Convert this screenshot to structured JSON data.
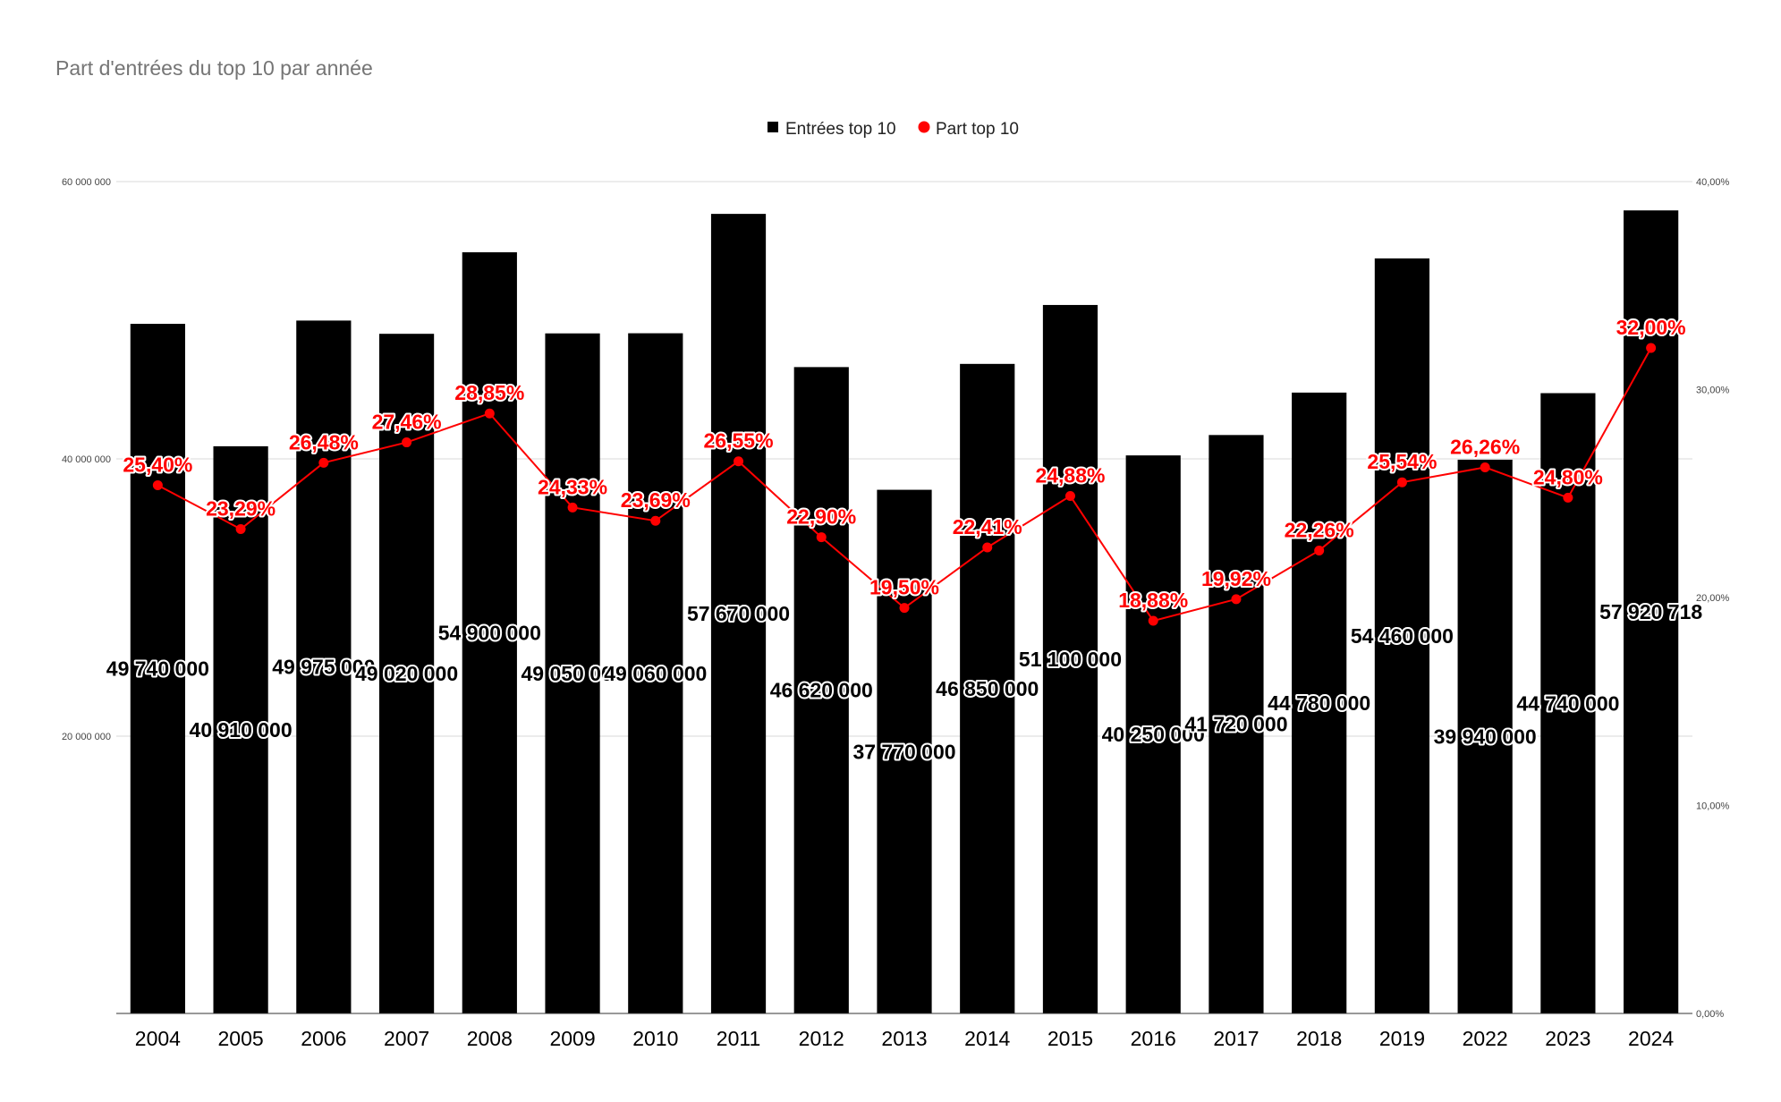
{
  "chart_data": {
    "type": "bar",
    "title": "Part d'entrées du top 10 par année",
    "categories": [
      "2004",
      "2005",
      "2006",
      "2007",
      "2008",
      "2009",
      "2010",
      "2011",
      "2012",
      "2013",
      "2014",
      "2015",
      "2016",
      "2017",
      "2018",
      "2019",
      "2022",
      "2023",
      "2024"
    ],
    "series": [
      {
        "name": "Entrées top 10",
        "type": "bar",
        "axis": "left",
        "color": "#000000",
        "values": [
          49740000,
          40910000,
          49975000,
          49020000,
          54900000,
          49050000,
          49060000,
          57670000,
          46620000,
          37770000,
          46850000,
          51100000,
          40250000,
          41720000,
          44780000,
          54460000,
          39940000,
          44740000,
          57920718
        ],
        "labels": [
          "49 740 000",
          "40 910 000",
          "49 975 000",
          "49 020 000",
          "54 900 000",
          "49 050 000",
          "49 060 000",
          "57 670 000",
          "46 620 000",
          "37 770 000",
          "46 850 000",
          "51 100 000",
          "40 250 000",
          "41 720 000",
          "44 780 000",
          "54 460 000",
          "39 940 000",
          "44 740 000",
          "57 920 718"
        ]
      },
      {
        "name": "Part top 10",
        "type": "line",
        "axis": "right",
        "color": "#ff0000",
        "values": [
          25.4,
          23.29,
          26.48,
          27.46,
          28.85,
          24.33,
          23.69,
          26.55,
          22.9,
          19.5,
          22.41,
          24.88,
          18.88,
          19.92,
          22.26,
          25.54,
          26.26,
          24.8,
          32.0
        ],
        "labels": [
          "25,40%",
          "23,29%",
          "26,48%",
          "27,46%",
          "28,85%",
          "24,33%",
          "23,69%",
          "26,55%",
          "22,90%",
          "19,50%",
          "22,41%",
          "24,88%",
          "18,88%",
          "19,92%",
          "22,26%",
          "25,54%",
          "26,26%",
          "24,80%",
          "32,00%"
        ]
      }
    ],
    "y_left": {
      "ylim": [
        0,
        60000000
      ],
      "ticks": [
        20000000,
        40000000,
        60000000
      ],
      "tick_labels": [
        "20 000 000",
        "40 000 000",
        "60 000 000"
      ]
    },
    "y_right": {
      "ylim": [
        0,
        40
      ],
      "ticks": [
        0,
        10,
        20,
        30,
        40
      ],
      "tick_labels": [
        "0,00%",
        "10,00%",
        "20,00%",
        "30,00%",
        "40,00%"
      ]
    },
    "grid": true,
    "legend_position": "top-center"
  }
}
